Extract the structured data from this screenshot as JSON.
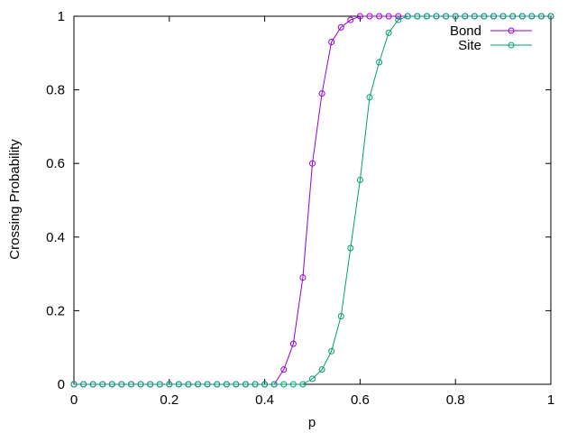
{
  "chart_data": {
    "type": "line",
    "title": "",
    "xlabel": "p",
    "ylabel": "Crossing Probability",
    "xlim": [
      0,
      1
    ],
    "ylim": [
      0,
      1
    ],
    "x_ticks": [
      0,
      0.2,
      0.4,
      0.6,
      0.8,
      1
    ],
    "x_tick_labels": [
      "0",
      "0.2",
      "0.4",
      "0.6",
      "0.8",
      "1"
    ],
    "y_ticks": [
      0,
      0.2,
      0.4,
      0.6,
      0.8,
      1
    ],
    "y_tick_labels": [
      "0",
      "0.2",
      "0.4",
      "0.6",
      "0.8",
      "1"
    ],
    "grid": false,
    "legend_position": "top-right",
    "x": [
      0,
      0.02,
      0.04,
      0.06,
      0.08,
      0.1,
      0.12,
      0.14,
      0.16,
      0.18,
      0.2,
      0.22,
      0.24,
      0.26,
      0.28,
      0.3,
      0.32,
      0.34,
      0.36,
      0.38,
      0.4,
      0.42,
      0.44,
      0.46,
      0.48,
      0.5,
      0.52,
      0.54,
      0.56,
      0.58,
      0.6,
      0.62,
      0.64,
      0.66,
      0.68,
      0.7,
      0.72,
      0.74,
      0.76,
      0.78,
      0.8,
      0.82,
      0.84,
      0.86,
      0.88,
      0.9,
      0.92,
      0.94,
      0.96,
      0.98,
      1
    ],
    "series": [
      {
        "name": "Bond",
        "color": "#9400d3",
        "marker": "circle",
        "values": [
          0,
          0,
          0,
          0,
          0,
          0,
          0,
          0,
          0,
          0,
          0,
          0,
          0,
          0,
          0,
          0,
          0,
          0,
          0,
          0,
          0,
          0,
          0.04,
          0.11,
          0.29,
          0.6,
          0.79,
          0.93,
          0.97,
          0.99,
          1,
          1,
          1,
          1,
          1,
          1,
          1,
          1,
          1,
          1,
          1,
          1,
          1,
          1,
          1,
          1,
          1,
          1,
          1,
          1,
          1
        ]
      },
      {
        "name": "Site",
        "color": "#009e73",
        "marker": "circle",
        "values": [
          0,
          0,
          0,
          0,
          0,
          0,
          0,
          0,
          0,
          0,
          0,
          0,
          0,
          0,
          0,
          0,
          0,
          0,
          0,
          0,
          0,
          0,
          0,
          0,
          0,
          0.015,
          0.04,
          0.09,
          0.185,
          0.37,
          0.555,
          0.78,
          0.875,
          0.955,
          0.99,
          1,
          1,
          1,
          1,
          1,
          1,
          1,
          1,
          1,
          1,
          1,
          1,
          1,
          1,
          1,
          1
        ]
      }
    ]
  }
}
